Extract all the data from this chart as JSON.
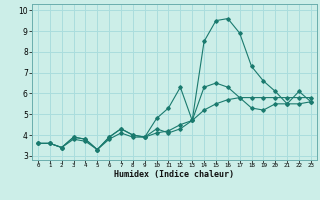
{
  "xlabel": "Humidex (Indice chaleur)",
  "background_color": "#cceee8",
  "grid_color": "#aadddd",
  "line_color": "#1a7a6e",
  "x_values": [
    0,
    1,
    2,
    3,
    4,
    5,
    6,
    7,
    8,
    9,
    10,
    11,
    12,
    13,
    14,
    15,
    16,
    17,
    18,
    19,
    20,
    21,
    22,
    23
  ],
  "series1": [
    3.6,
    3.6,
    3.4,
    3.9,
    3.8,
    3.3,
    3.9,
    4.3,
    4.0,
    3.9,
    4.8,
    5.3,
    6.3,
    4.7,
    8.5,
    9.5,
    9.6,
    8.9,
    7.3,
    6.6,
    6.1,
    5.5,
    6.1,
    5.6
  ],
  "series2": [
    3.6,
    3.6,
    3.4,
    3.9,
    3.8,
    3.3,
    3.9,
    4.3,
    4.0,
    3.9,
    4.3,
    4.1,
    4.3,
    4.7,
    6.3,
    6.5,
    6.3,
    5.8,
    5.3,
    5.2,
    5.5,
    5.5,
    5.5,
    5.6
  ],
  "series3": [
    3.6,
    3.6,
    3.4,
    3.8,
    3.7,
    3.3,
    3.8,
    4.1,
    3.9,
    3.9,
    4.1,
    4.2,
    4.5,
    4.7,
    5.2,
    5.5,
    5.7,
    5.8,
    5.8,
    5.8,
    5.8,
    5.8,
    5.8,
    5.8
  ],
  "ylim": [
    2.8,
    10.3
  ],
  "xlim": [
    -0.5,
    23.5
  ],
  "yticks": [
    3,
    4,
    5,
    6,
    7,
    8,
    9,
    10
  ],
  "xticks": [
    0,
    1,
    2,
    3,
    4,
    5,
    6,
    7,
    8,
    9,
    10,
    11,
    12,
    13,
    14,
    15,
    16,
    17,
    18,
    19,
    20,
    21,
    22,
    23
  ]
}
